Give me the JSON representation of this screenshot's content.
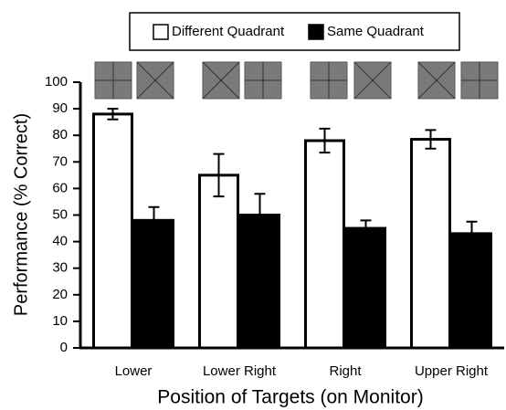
{
  "chart_data": {
    "type": "bar",
    "x_label": "Position of Targets (on Monitor)",
    "y_label": "Performance (% Correct)",
    "categories": [
      "Lower",
      "Lower Right",
      "Right",
      "Upper Right"
    ],
    "series": [
      {
        "name": "Different Quadrant",
        "color": "#ffffff",
        "values": [
          88,
          65,
          78,
          78.5
        ],
        "errors": [
          2,
          8,
          4.5,
          3.5
        ]
      },
      {
        "name": "Same Quadrant",
        "color": "#000000",
        "values": [
          48,
          50,
          45,
          43
        ],
        "errors": [
          5,
          8,
          3,
          4.5
        ]
      }
    ],
    "ylim": [
      0,
      100
    ],
    "yticks": [
      0,
      10,
      20,
      30,
      40,
      50,
      60,
      70,
      80,
      90,
      100
    ],
    "grid": false
  }
}
